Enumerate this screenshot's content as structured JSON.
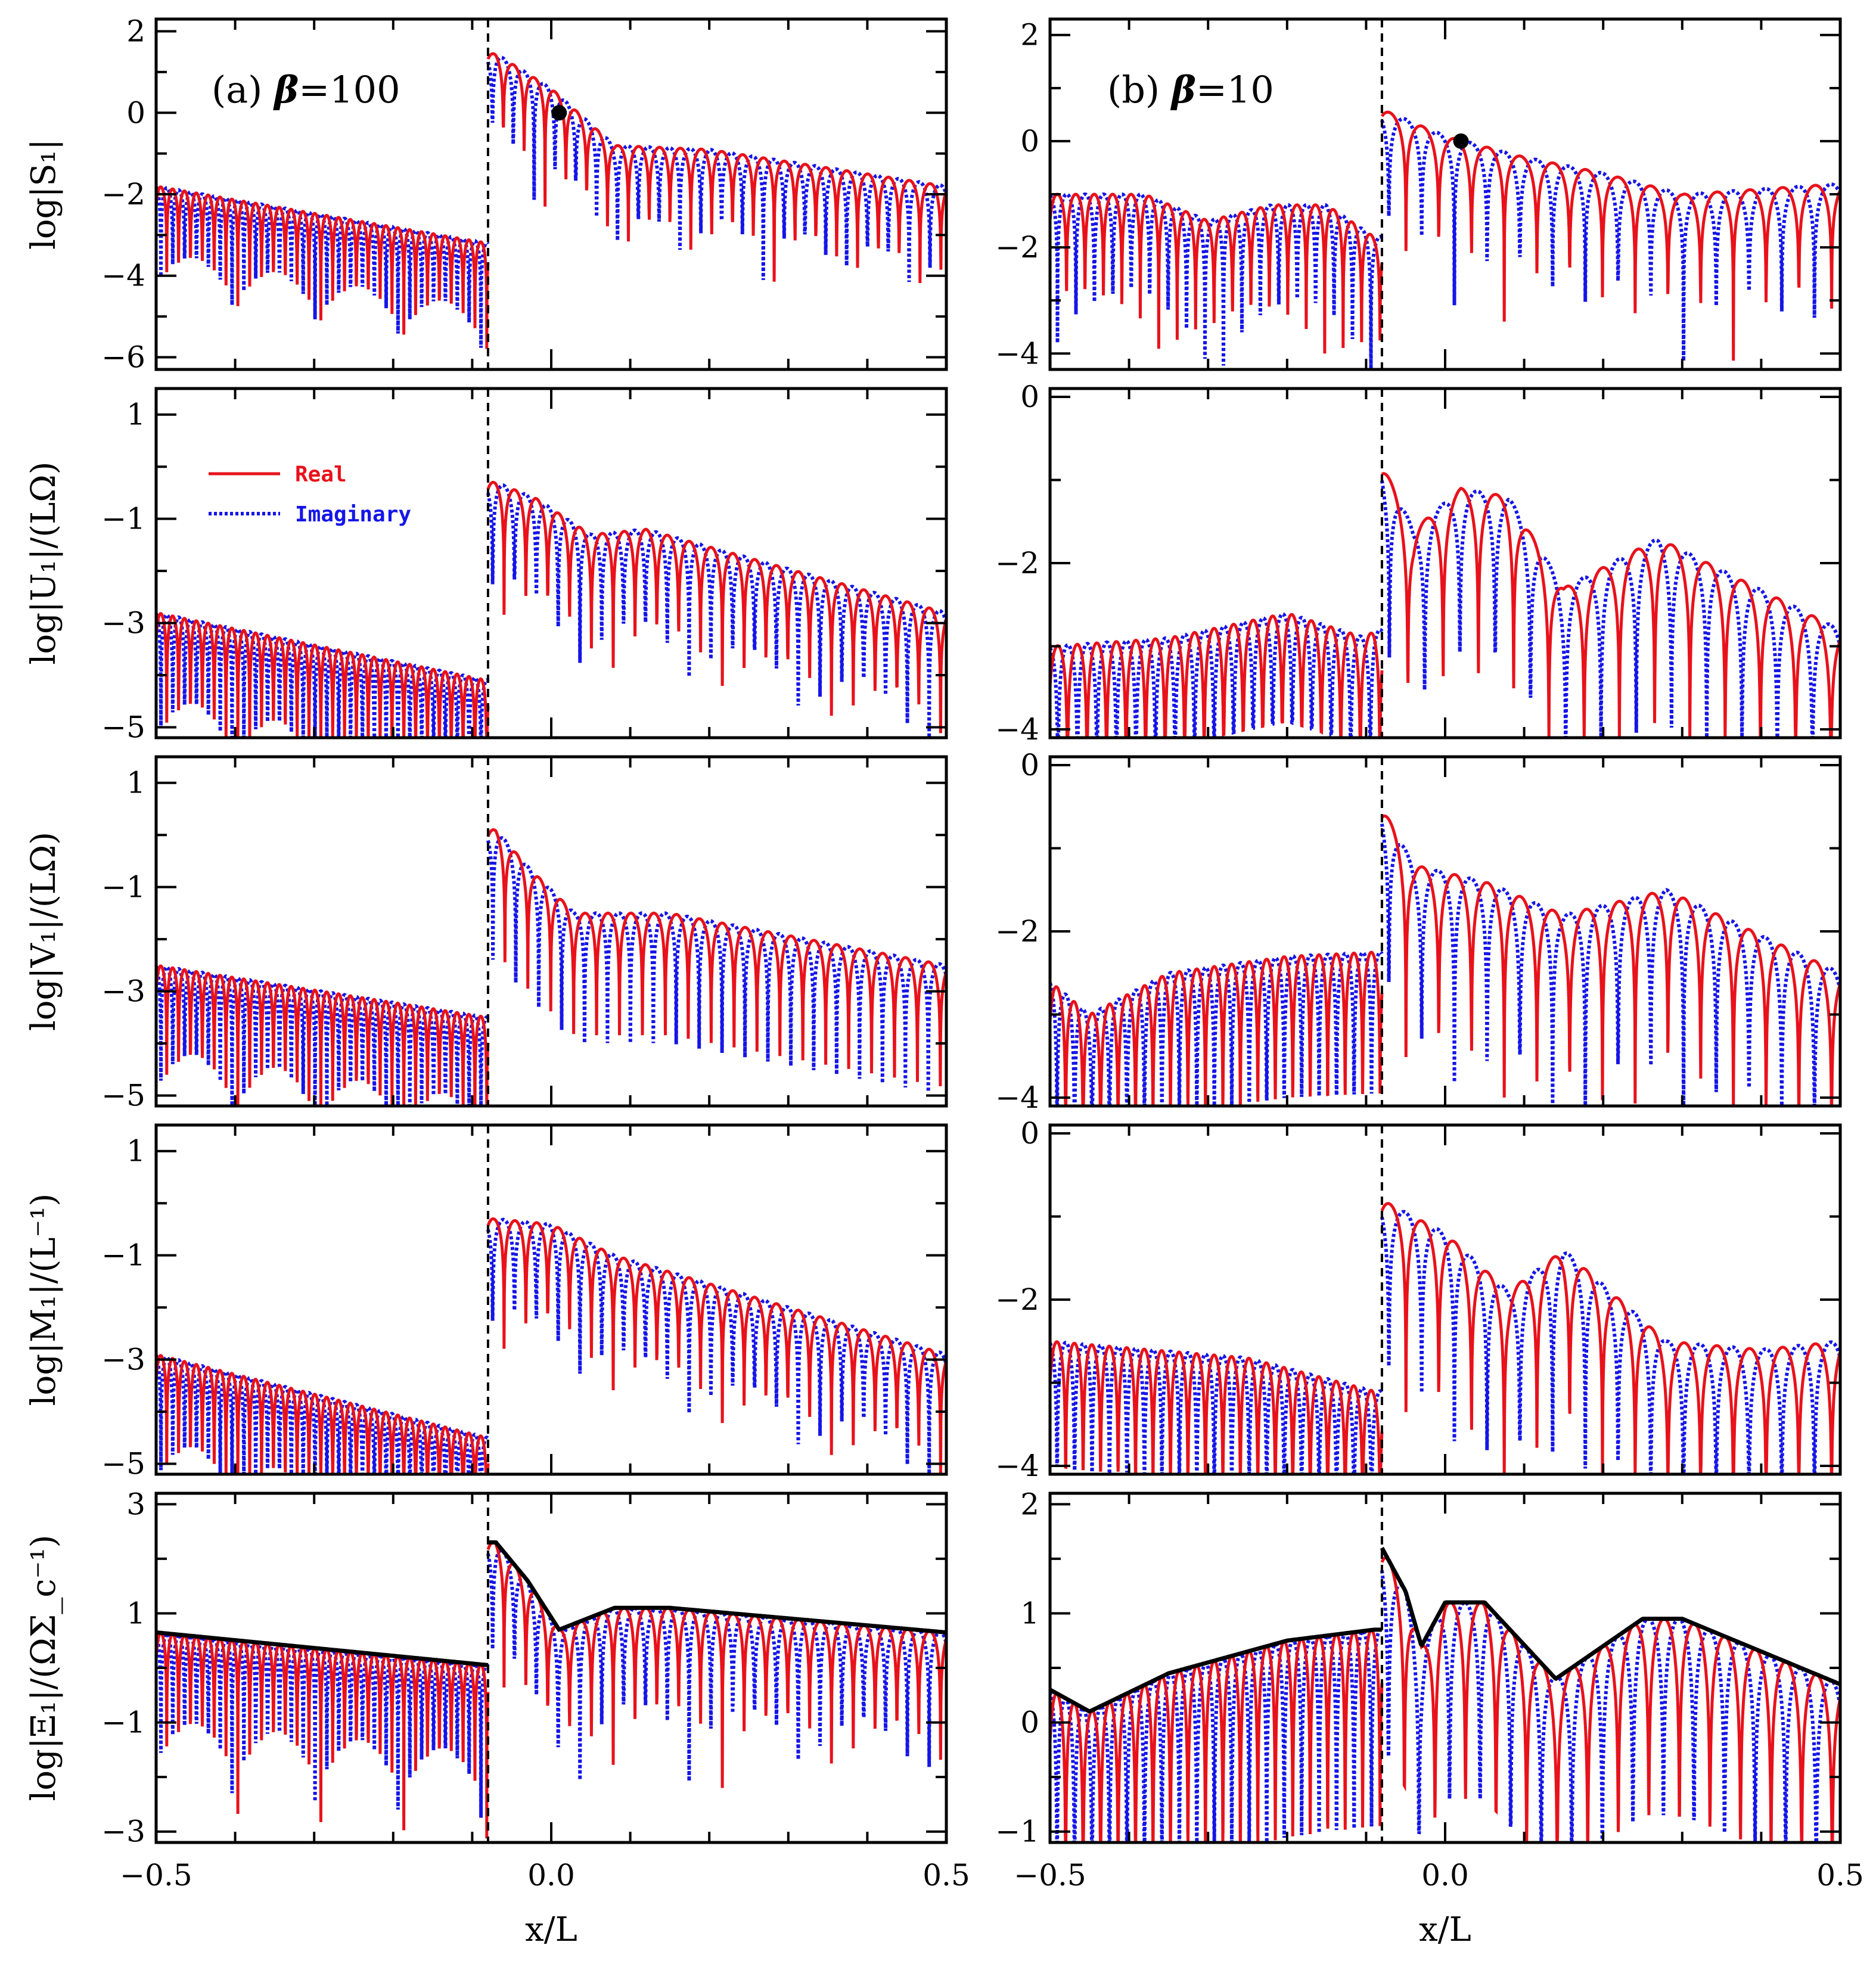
{
  "chart_data": {
    "type": "line",
    "x_axis_label": "x/L",
    "x_range": [
      -0.5,
      0.5
    ],
    "x_ticks": [
      "-0.5",
      "0.0",
      "0.5"
    ],
    "shock_position_x": -0.08,
    "legend": {
      "real": "Real",
      "imaginary": "Imaginary"
    },
    "colors": {
      "real": "#e8121b",
      "imaginary": "#1515e8",
      "envelope": "#000000",
      "shock": "#000000"
    },
    "columns": [
      {
        "id": "a",
        "panel_label": "(a) β=100",
        "label_part1": "(a)",
        "label_part2": "β=100"
      },
      {
        "id": "b",
        "panel_label": "(b) β=10",
        "label_part1": "(b)",
        "label_part2": "β=10"
      }
    ],
    "rows": [
      {
        "id": "S1",
        "ylabel": "log|S₁|",
        "panels": [
          {
            "ylim": [
              -6.3,
              2.3
            ],
            "yticks": [
              -6,
              -4,
              -2,
              0,
              2
            ],
            "y_tick_labels": [
              "-6",
              "-4",
              "-2",
              "0",
              "2"
            ],
            "pre": {
              "env_start": -1.8,
              "env_end": -3.2,
              "n_lobes": 28,
              "depth": 2.6
            },
            "post": {
              "segments": [
                [
                  -0.07,
                  1.45
                ],
                [
                  0.0,
                  0.6
                ],
                [
                  0.08,
                  -0.8
                ],
                [
                  0.2,
                  -0.9
                ],
                [
                  0.5,
                  -1.8
                ]
              ],
              "n_lobes": 22,
              "depth": 3.0
            },
            "marker": {
              "x": 0.01,
              "y": 0.0
            }
          },
          {
            "ylim": [
              -4.3,
              2.3
            ],
            "yticks": [
              -4,
              -2,
              0,
              2
            ],
            "y_tick_labels": [
              "-4",
              "-2",
              "0",
              "2"
            ],
            "pre": {
              "segments": [
                [
                  -0.5,
                  -1.0
                ],
                [
                  -0.38,
                  -1.0
                ],
                [
                  -0.3,
                  -1.5
                ],
                [
                  -0.22,
                  -1.2
                ],
                [
                  -0.15,
                  -1.2
                ],
                [
                  -0.09,
                  -1.8
                ]
              ],
              "n_lobes": 18,
              "depth": 2.8
            },
            "post": {
              "segments": [
                [
                  -0.08,
                  0.6
                ],
                [
                  0.0,
                  0.1
                ],
                [
                  0.1,
                  -0.3
                ],
                [
                  0.2,
                  -0.6
                ],
                [
                  0.3,
                  -1.0
                ],
                [
                  0.5,
                  -0.8
                ]
              ],
              "n_lobes": 14,
              "depth": 3.2
            },
            "marker": {
              "x": 0.02,
              "y": 0.0
            }
          }
        ]
      },
      {
        "id": "U1",
        "ylabel": "log|U₁|/(LΩ)",
        "panels": [
          {
            "ylim": [
              -5.2,
              1.5
            ],
            "yticks": [
              -5,
              -3,
              -1,
              1
            ],
            "y_tick_labels": [
              "-5",
              "-3",
              "-1",
              "1"
            ],
            "pre": {
              "env_start": -2.8,
              "env_end": -4.1,
              "n_lobes": 28,
              "depth": 2.4
            },
            "post": {
              "segments": [
                [
                  -0.07,
                  -0.3
                ],
                [
                  -0.02,
                  -0.6
                ],
                [
                  0.05,
                  -1.3
                ],
                [
                  0.12,
                  -1.2
                ],
                [
                  0.5,
                  -2.8
                ]
              ],
              "n_lobes": 21,
              "depth": 2.6
            }
          },
          {
            "ylim": [
              -4.1,
              0.1
            ],
            "yticks": [
              -4,
              -2,
              0
            ],
            "y_tick_labels": [
              "-4",
              "-2",
              "0"
            ],
            "pre": {
              "segments": [
                [
                  -0.5,
                  -3.0
                ],
                [
                  -0.35,
                  -2.9
                ],
                [
                  -0.2,
                  -2.6
                ],
                [
                  -0.1,
                  -2.9
                ],
                [
                  -0.09,
                  -2.8
                ]
              ],
              "n_lobes": 17,
              "depth": 1.3
            },
            "post": {
              "segments": [
                [
                  -0.08,
                  -0.8
                ],
                [
                  -0.04,
                  -1.6
                ],
                [
                  0.02,
                  -1.1
                ],
                [
                  0.08,
                  -1.2
                ],
                [
                  0.15,
                  -2.3
                ],
                [
                  0.27,
                  -1.7
                ],
                [
                  0.5,
                  -2.8
                ]
              ],
              "n_lobes": 13,
              "depth": 2.2
            }
          }
        ]
      },
      {
        "id": "V1",
        "ylabel": "log|V₁|/(LΩ)",
        "panels": [
          {
            "ylim": [
              -5.2,
              1.5
            ],
            "yticks": [
              -5,
              -3,
              -1,
              1
            ],
            "y_tick_labels": [
              "-5",
              "-3",
              "-1",
              "1"
            ],
            "pre": {
              "env_start": -2.5,
              "env_end": -3.5,
              "n_lobes": 28,
              "depth": 2.6
            },
            "post": {
              "segments": [
                [
                  -0.07,
                  0.1
                ],
                [
                  -0.03,
                  -0.6
                ],
                [
                  0.03,
                  -1.5
                ],
                [
                  0.15,
                  -1.5
                ],
                [
                  0.5,
                  -2.5
                ]
              ],
              "n_lobes": 20,
              "depth": 2.5
            }
          },
          {
            "ylim": [
              -4.1,
              0.1
            ],
            "yticks": [
              -4,
              -2,
              0
            ],
            "y_tick_labels": [
              "-4",
              "-2",
              "0"
            ],
            "pre": {
              "segments": [
                [
                  -0.5,
                  -2.6
                ],
                [
                  -0.45,
                  -3.0
                ],
                [
                  -0.35,
                  -2.5
                ],
                [
                  -0.2,
                  -2.3
                ],
                [
                  -0.09,
                  -2.25
                ]
              ],
              "n_lobes": 19,
              "depth": 1.7
            },
            "post": {
              "segments": [
                [
                  -0.08,
                  -0.5
                ],
                [
                  -0.04,
                  -1.2
                ],
                [
                  0.05,
                  -1.4
                ],
                [
                  0.15,
                  -1.8
                ],
                [
                  0.28,
                  -1.5
                ],
                [
                  0.5,
                  -2.5
                ]
              ],
              "n_lobes": 14,
              "depth": 2.5
            }
          }
        ]
      },
      {
        "id": "M1",
        "ylabel": "log|M₁|/(L⁻¹)",
        "panels": [
          {
            "ylim": [
              -5.2,
              1.5
            ],
            "yticks": [
              -5,
              -3,
              -1,
              1
            ],
            "y_tick_labels": [
              "-5",
              "-3",
              "-1",
              "1"
            ],
            "pre": {
              "env_start": -2.9,
              "env_end": -4.5,
              "n_lobes": 28,
              "depth": 2.3
            },
            "post": {
              "segments": [
                [
                  -0.07,
                  -0.3
                ],
                [
                  0.0,
                  -0.4
                ],
                [
                  0.08,
                  -1.0
                ],
                [
                  0.5,
                  -2.9
                ]
              ],
              "n_lobes": 21,
              "depth": 2.6
            }
          },
          {
            "ylim": [
              -4.1,
              0.1
            ],
            "yticks": [
              -4,
              -2,
              0
            ],
            "y_tick_labels": [
              "-4",
              "-2",
              "0"
            ],
            "pre": {
              "segments": [
                [
                  -0.5,
                  -2.5
                ],
                [
                  -0.25,
                  -2.7
                ],
                [
                  -0.09,
                  -3.1
                ]
              ],
              "n_lobes": 19,
              "depth": 1.5
            },
            "post": {
              "segments": [
                [
                  -0.08,
                  -0.8
                ],
                [
                  0.0,
                  -1.2
                ],
                [
                  0.08,
                  -1.9
                ],
                [
                  0.15,
                  -1.4
                ],
                [
                  0.28,
                  -2.5
                ],
                [
                  0.4,
                  -2.6
                ],
                [
                  0.5,
                  -2.5
                ]
              ],
              "n_lobes": 14,
              "depth": 2.4
            }
          }
        ]
      },
      {
        "id": "Xi1",
        "ylabel": "log|Ξ₁|/(ΩΣ_c⁻¹)",
        "envelope": true,
        "panels": [
          {
            "ylim": [
              -3.2,
              3.2
            ],
            "yticks": [
              -3,
              -1,
              1,
              3
            ],
            "y_tick_labels": [
              "-3",
              "-1",
              "1",
              "3"
            ],
            "pre": {
              "env_start": 0.65,
              "env_end": 0.05,
              "n_lobes": 28,
              "depth": 3.2
            },
            "post": {
              "segments": [
                [
                  -0.07,
                  2.3
                ],
                [
                  -0.03,
                  1.6
                ],
                [
                  0.01,
                  0.7
                ],
                [
                  0.08,
                  1.1
                ],
                [
                  0.15,
                  1.1
                ],
                [
                  0.5,
                  0.65
                ]
              ],
              "n_lobes": 21,
              "depth": 3.5
            }
          },
          {
            "ylim": [
              -1.1,
              2.1
            ],
            "yticks": [
              -1,
              0,
              1,
              2
            ],
            "y_tick_labels": [
              "-1",
              "0",
              "1",
              "2"
            ],
            "pre": {
              "segments": [
                [
                  -0.5,
                  0.3
                ],
                [
                  -0.45,
                  0.1
                ],
                [
                  -0.35,
                  0.45
                ],
                [
                  -0.2,
                  0.75
                ],
                [
                  -0.09,
                  0.85
                ]
              ],
              "n_lobes": 19,
              "depth": 1.8
            },
            "post": {
              "segments": [
                [
                  -0.08,
                  1.6
                ],
                [
                  -0.05,
                  1.2
                ],
                [
                  -0.03,
                  0.7
                ],
                [
                  0.0,
                  1.1
                ],
                [
                  0.05,
                  1.1
                ],
                [
                  0.14,
                  0.4
                ],
                [
                  0.25,
                  0.95
                ],
                [
                  0.3,
                  0.95
                ],
                [
                  0.5,
                  0.35
                ]
              ],
              "n_lobes": 15,
              "depth": 1.8
            }
          }
        ]
      }
    ]
  }
}
